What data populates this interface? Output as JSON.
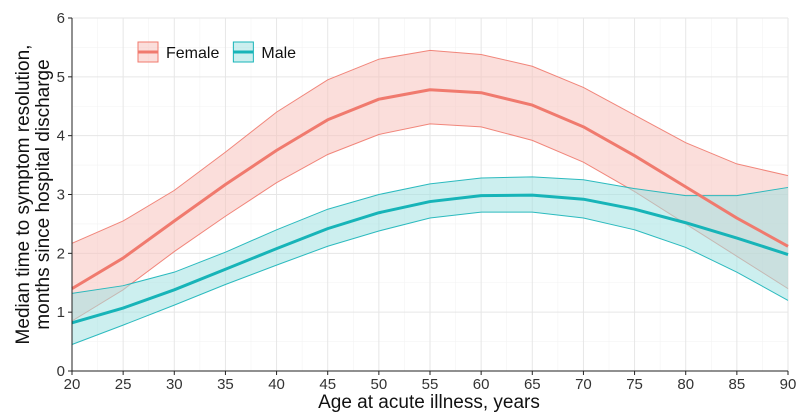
{
  "chart_data": {
    "type": "line",
    "title": "",
    "xlabel": "Age at acute illness, years",
    "ylabel": [
      "Median time to symptom resolution,",
      "months since hospital discharge"
    ],
    "xlim": [
      20,
      90
    ],
    "ylim": [
      0,
      6
    ],
    "x_ticks": [
      20,
      25,
      30,
      35,
      40,
      45,
      50,
      55,
      60,
      65,
      70,
      75,
      80,
      85,
      90
    ],
    "y_ticks": [
      0,
      1,
      2,
      3,
      4,
      5,
      6
    ],
    "grid": true,
    "legend": {
      "position": "top-left",
      "orientation": "horizontal"
    },
    "x": [
      20,
      25,
      30,
      35,
      40,
      45,
      50,
      55,
      60,
      65,
      70,
      75,
      80,
      85,
      90
    ],
    "series": [
      {
        "name": "Female",
        "color": "#f07a6e",
        "fill": "#f8c3bd",
        "values": [
          1.4,
          1.92,
          2.55,
          3.17,
          3.75,
          4.27,
          4.62,
          4.78,
          4.73,
          4.52,
          4.15,
          3.66,
          3.13,
          2.6,
          2.12
        ],
        "lower": [
          0.85,
          1.38,
          2.03,
          2.63,
          3.2,
          3.68,
          4.02,
          4.2,
          4.15,
          3.92,
          3.55,
          3.05,
          2.5,
          1.95,
          1.4
        ],
        "upper": [
          2.17,
          2.55,
          3.07,
          3.72,
          4.4,
          4.95,
          5.3,
          5.45,
          5.38,
          5.18,
          4.82,
          4.35,
          3.88,
          3.52,
          3.32
        ]
      },
      {
        "name": "Male",
        "color": "#17b4b8",
        "fill": "#a3e2e2",
        "values": [
          0.82,
          1.07,
          1.38,
          1.73,
          2.08,
          2.42,
          2.69,
          2.88,
          2.98,
          2.99,
          2.92,
          2.75,
          2.52,
          2.26,
          1.98
        ],
        "lower": [
          0.45,
          0.78,
          1.12,
          1.47,
          1.8,
          2.12,
          2.38,
          2.6,
          2.7,
          2.7,
          2.6,
          2.4,
          2.1,
          1.68,
          1.2
        ],
        "upper": [
          1.32,
          1.45,
          1.68,
          2.02,
          2.4,
          2.75,
          3.0,
          3.18,
          3.28,
          3.3,
          3.25,
          3.1,
          2.98,
          2.98,
          3.12
        ]
      }
    ]
  }
}
